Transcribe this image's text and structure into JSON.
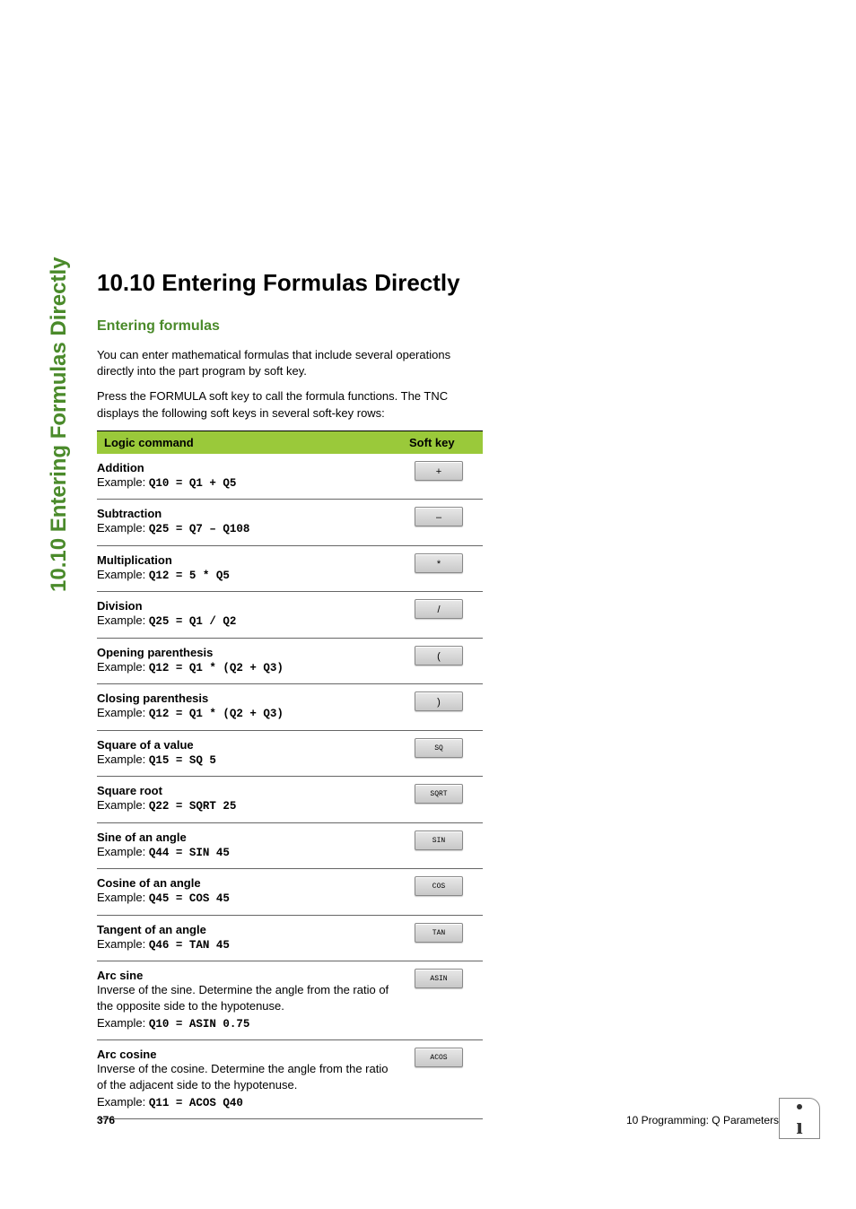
{
  "side_title": "10.10 Entering Formulas Directly",
  "heading": "10.10  Entering Formulas Directly",
  "subheading": "Entering formulas",
  "intro1": "You can enter mathematical formulas that include several operations directly into the part program by soft key.",
  "intro2": "Press the FORMULA soft key to call the formula functions. The TNC displays the following soft keys in several soft-key rows:",
  "table": {
    "col1": "Logic command",
    "col2": "Soft key",
    "rows": [
      {
        "title": "Addition",
        "desc": "",
        "example_label": "Example: ",
        "example_code": "Q10 = Q1 + Q5",
        "key": "+",
        "key_style": "sym"
      },
      {
        "title": "Subtraction",
        "desc": "",
        "example_label": "Example: ",
        "example_code": "Q25 = Q7 – Q108",
        "key": "–",
        "key_style": "sym"
      },
      {
        "title": "Multiplication",
        "desc": "",
        "example_label": "Example: ",
        "example_code": "Q12 = 5 * Q5",
        "key": "*",
        "key_style": "sym"
      },
      {
        "title": "Division",
        "desc": "",
        "example_label": "Example: ",
        "example_code": "Q25 = Q1 / Q2",
        "key": "/",
        "key_style": "sym"
      },
      {
        "title": "Opening parenthesis",
        "desc": "",
        "example_label": "Example: ",
        "example_code": "Q12 = Q1 * (Q2 + Q3)",
        "key": "(",
        "key_style": "sym"
      },
      {
        "title": "Closing parenthesis",
        "desc": "",
        "example_label": "Example: ",
        "example_code": "Q12 = Q1 * (Q2 + Q3)",
        "key": ")",
        "key_style": "sym"
      },
      {
        "title": "Square of a value",
        "desc": "",
        "example_label": "Example: ",
        "example_code": "Q15 = SQ 5",
        "key": "SQ",
        "key_style": ""
      },
      {
        "title": "Square root",
        "desc": "",
        "example_label": "Example: ",
        "example_code": "Q22 = SQRT 25",
        "key": "SQRT",
        "key_style": ""
      },
      {
        "title": "Sine of an angle",
        "desc": "",
        "example_label": "Example: ",
        "example_code": "Q44 = SIN 45",
        "key": "SIN",
        "key_style": ""
      },
      {
        "title": "Cosine of an angle",
        "desc": "",
        "example_label": "Example: ",
        "example_code": "Q45 = COS 45",
        "key": "COS",
        "key_style": ""
      },
      {
        "title": "Tangent of an angle",
        "desc": "",
        "example_label": "Example: ",
        "example_code": "Q46 = TAN 45",
        "key": "TAN",
        "key_style": ""
      },
      {
        "title": "Arc sine",
        "desc": "Inverse of the sine. Determine the angle from the ratio of the opposite side to the hypotenuse.",
        "example_label": "Example: ",
        "example_code": "Q10 = ASIN 0.75",
        "key": "ASIN",
        "key_style": ""
      },
      {
        "title": "Arc cosine",
        "desc": "Inverse of the cosine. Determine the angle from the ratio of the adjacent side to the hypotenuse.",
        "example_label": "Example: ",
        "example_code": "Q11 = ACOS Q40",
        "key": "ACOS",
        "key_style": ""
      }
    ]
  },
  "footer": {
    "page_number": "376",
    "chapter": "10 Programming: Q Parameters"
  },
  "colors": {
    "accent_green": "#4a8a2a",
    "header_bg": "#9ac93a"
  }
}
